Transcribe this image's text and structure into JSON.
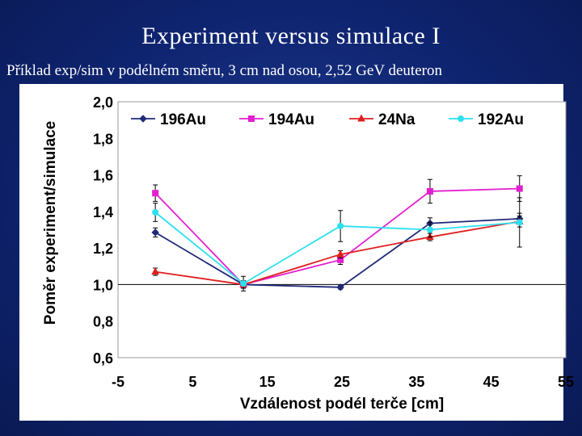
{
  "slide": {
    "title": "Experiment versus simulace I",
    "subtitle": "Příklad exp/sim v podélném směru, 3 cm nad osou, 2,52 GeV deuteron"
  },
  "chart_data": {
    "type": "line",
    "title": "",
    "xlabel": "Vzdálenost podél terče [cm]",
    "ylabel": "Poměr experiment/simulace",
    "xlim": [
      -5,
      55
    ],
    "ylim": [
      0.6,
      2.0
    ],
    "x_ticks": [
      "-5",
      "5",
      "15",
      "25",
      "35",
      "45",
      "55"
    ],
    "x_tick_values": [
      -5,
      5,
      15,
      25,
      35,
      45,
      55
    ],
    "y_ticks": [
      "0,6",
      "0,8",
      "1,0",
      "1,2",
      "1,4",
      "1,6",
      "1,8",
      "2,0"
    ],
    "y_tick_values": [
      0.6,
      0.8,
      1.0,
      1.2,
      1.4,
      1.6,
      1.8,
      2.0
    ],
    "reference_line": 1.0,
    "legend_position": "top",
    "series": [
      {
        "name": "196Au",
        "color": "#1f2a78",
        "marker": "diamond",
        "x": [
          0,
          11.8,
          24.8,
          36.8,
          48.8
        ],
        "values": [
          1.285,
          1.0,
          0.985,
          1.335,
          1.36
        ],
        "errors": [
          0.025,
          0.02,
          0.01,
          0.03,
          0.03
        ]
      },
      {
        "name": "194Au",
        "color": "#e31fd0",
        "marker": "square",
        "x": [
          0,
          11.8,
          24.8,
          36.8,
          48.8
        ],
        "values": [
          1.5,
          1.0,
          1.135,
          1.51,
          1.525
        ],
        "errors": [
          0.045,
          0.02,
          0.025,
          0.065,
          0.07
        ]
      },
      {
        "name": "24Na",
        "color": "#e01e1e",
        "marker": "triangle",
        "x": [
          0,
          11.8,
          24.8,
          36.8,
          48.8
        ],
        "values": [
          1.07,
          1.0,
          1.165,
          1.26,
          1.345
        ],
        "errors": [
          0.02,
          0.02,
          0.02,
          0.02,
          0.03
        ]
      },
      {
        "name": "192Au",
        "color": "#2de0f0",
        "marker": "circle",
        "x": [
          0,
          11.8,
          24.8,
          36.8,
          48.8
        ],
        "values": [
          1.395,
          1.005,
          1.32,
          1.3,
          1.34
        ],
        "errors": [
          0.05,
          0.04,
          0.085,
          0.04,
          0.135
        ]
      }
    ]
  }
}
